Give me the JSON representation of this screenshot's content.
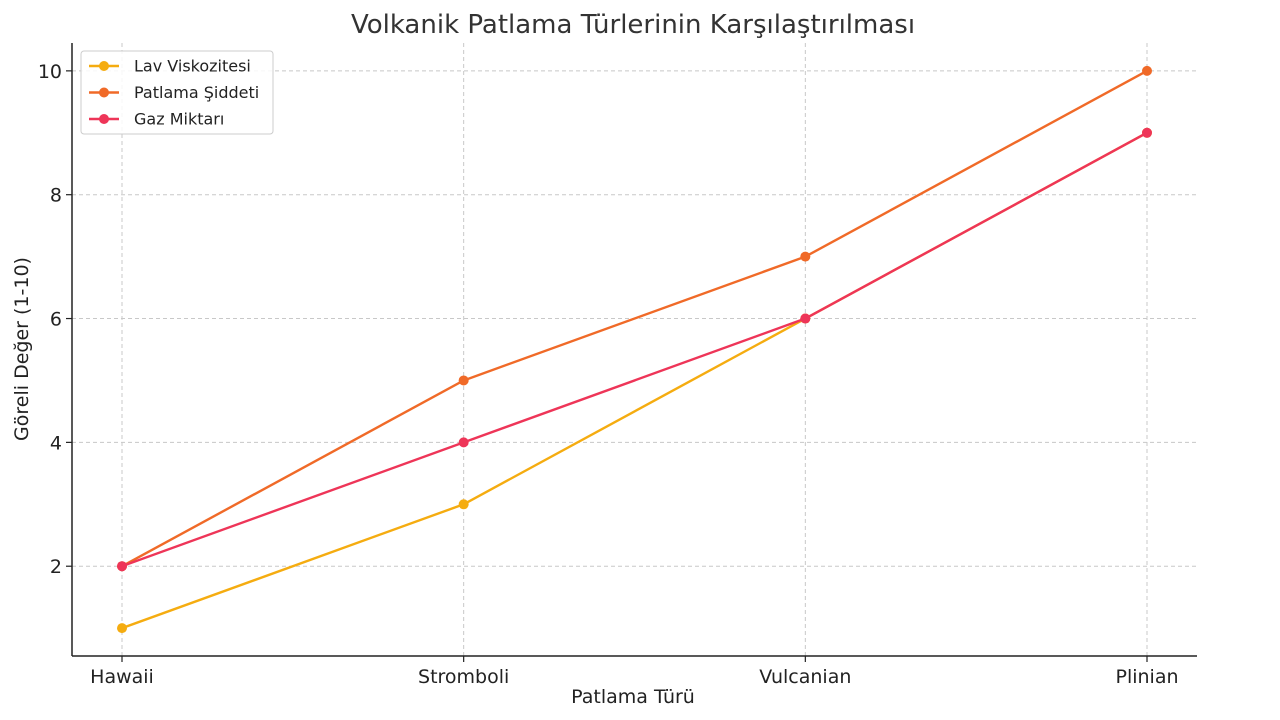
{
  "chart_data": {
    "type": "line",
    "title": "Volkanik Patlama Türlerinin Karşılaştırılması",
    "xlabel": "Patlama Türü",
    "ylabel": "Göreli Değer (1-10)",
    "categories": [
      "Hawaii",
      "Stromboli",
      "Vulcanian",
      "Plinian"
    ],
    "ylim": [
      0.55,
      10.45
    ],
    "yticks": [
      2,
      4,
      6,
      8,
      10
    ],
    "grid": true,
    "legend_position": "top-left",
    "series": [
      {
        "name": "Lav Viskozitesi",
        "color": "#F5AC10",
        "values": [
          1,
          3,
          6,
          9
        ]
      },
      {
        "name": "Patlama Şiddeti",
        "color": "#F06A28",
        "values": [
          2,
          5,
          7,
          10
        ]
      },
      {
        "name": "Gaz Miktarı",
        "color": "#EE3558",
        "values": [
          2,
          4,
          6,
          9
        ]
      }
    ]
  }
}
